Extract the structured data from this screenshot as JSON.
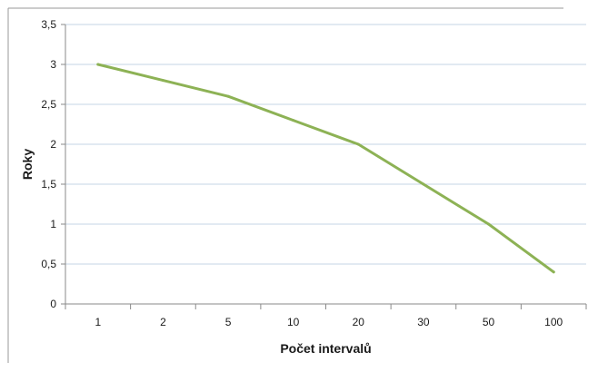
{
  "chart_data": {
    "type": "line",
    "title": "",
    "xlabel": "Počet intervalů",
    "ylabel": "Roky",
    "categories": [
      "1",
      "2",
      "5",
      "10",
      "20",
      "30",
      "50",
      "100"
    ],
    "y_tick_labels": [
      "0",
      "0,5",
      "1",
      "1,5",
      "2",
      "2,5",
      "3",
      "3,5"
    ],
    "ylim": [
      0,
      3.5
    ],
    "y_ticks": [
      0,
      0.5,
      1,
      1.5,
      2,
      2.5,
      3,
      3.5
    ],
    "grid": true,
    "legend": "none",
    "series": [
      {
        "values": [
          3.0,
          2.8,
          2.6,
          2.3,
          2.0,
          1.5,
          1.0,
          0.4
        ],
        "color": "#8db255"
      }
    ],
    "colors": {
      "gridline": "#c6d5e6",
      "axis": "#8a8a8a",
      "frame": "#9a9a9a"
    }
  }
}
